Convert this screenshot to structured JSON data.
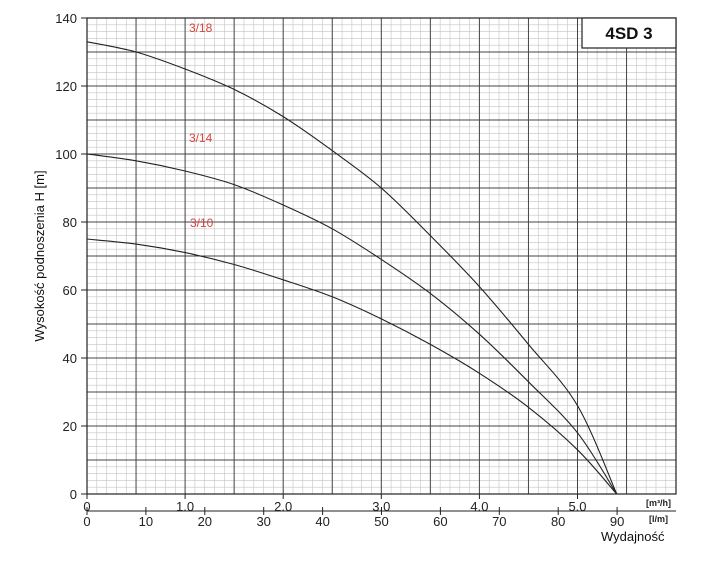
{
  "chart_data": {
    "type": "line",
    "title": "4SD 3",
    "ylabel": "Wysokość podnoszenia H [m]",
    "xlabel": "Wydajność",
    "x_unit_primary": "[m³/h]",
    "x_unit_secondary": "[l/m]",
    "xlim": [
      0,
      5.5
    ],
    "ylim": [
      0,
      140
    ],
    "x_ticks": [
      "0",
      "1.0",
      "2.0",
      "3.0",
      "4.0",
      "5.0"
    ],
    "x_ticks_secondary": [
      "0",
      "10",
      "20",
      "30",
      "40",
      "50",
      "60",
      "70",
      "80",
      "90"
    ],
    "y_ticks": [
      "0",
      "20",
      "40",
      "60",
      "80",
      "100",
      "120",
      "140"
    ],
    "grid": true,
    "series": [
      {
        "name": "3/18",
        "color": "#222222",
        "label_color": "#d9453a",
        "x": [
          0,
          0.5,
          1.0,
          1.5,
          2.0,
          2.5,
          3.0,
          3.5,
          4.0,
          4.5,
          5.0,
          5.4
        ],
        "y": [
          133,
          130,
          125,
          119,
          111,
          101,
          90,
          76,
          61,
          44,
          26,
          0
        ]
      },
      {
        "name": "3/14",
        "color": "#222222",
        "label_color": "#d9453a",
        "x": [
          0,
          0.5,
          1.0,
          1.5,
          2.0,
          2.5,
          3.0,
          3.5,
          4.0,
          4.5,
          5.0,
          5.4
        ],
        "y": [
          100,
          98,
          95,
          91,
          85,
          78,
          69,
          59,
          47,
          33,
          18,
          0
        ]
      },
      {
        "name": "3/10",
        "color": "#222222",
        "label_color": "#d9453a",
        "x": [
          0,
          0.5,
          1.0,
          1.5,
          2.0,
          2.5,
          3.0,
          3.5,
          4.0,
          4.5,
          5.0,
          5.4
        ],
        "y": [
          75,
          73.5,
          71,
          67.5,
          63,
          58,
          51.5,
          44,
          35.5,
          25.5,
          13,
          0
        ]
      }
    ]
  }
}
